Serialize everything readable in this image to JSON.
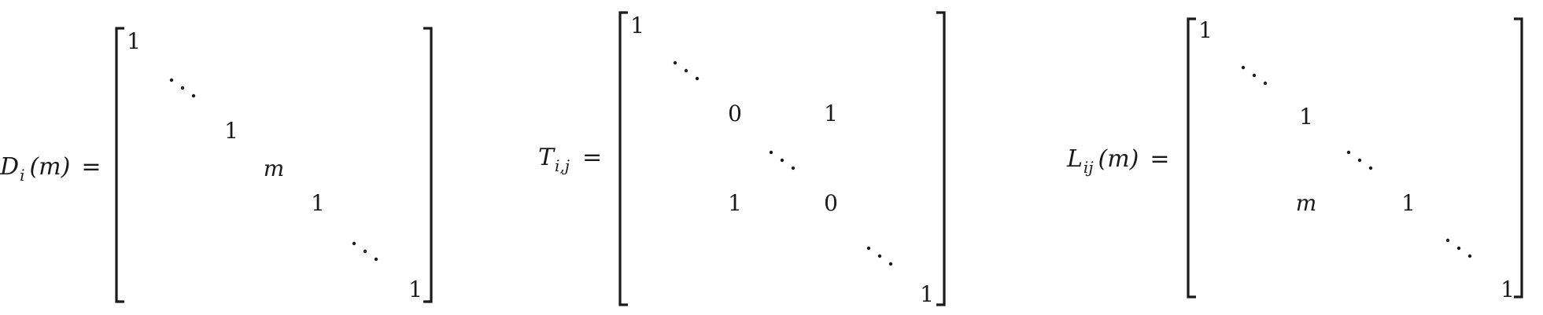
{
  "matrices": [
    {
      "name": "D",
      "subscript": "i",
      "argument": "(m)",
      "equals": "=",
      "entries": [
        {
          "text": "1",
          "kind": "num"
        },
        {
          "text": "⋱",
          "kind": "dots"
        },
        {
          "text": "1",
          "kind": "num"
        },
        {
          "text": "m",
          "kind": "var"
        },
        {
          "text": "1",
          "kind": "num"
        },
        {
          "text": "⋱",
          "kind": "dots"
        },
        {
          "text": "1",
          "kind": "num"
        }
      ]
    },
    {
      "name": "T",
      "subscript": "i,j",
      "argument": "",
      "equals": "=",
      "entries": [
        {
          "text": "1",
          "kind": "num"
        },
        {
          "text": "⋱",
          "kind": "dots"
        },
        {
          "text": "0",
          "kind": "num"
        },
        {
          "text": "1",
          "kind": "num"
        },
        {
          "text": "⋱",
          "kind": "dots"
        },
        {
          "text": "1",
          "kind": "num"
        },
        {
          "text": "0",
          "kind": "num"
        },
        {
          "text": "⋱",
          "kind": "dots"
        },
        {
          "text": "1",
          "kind": "num"
        }
      ]
    },
    {
      "name": "L",
      "subscript": "ij",
      "argument": "(m)",
      "equals": "=",
      "entries": [
        {
          "text": "1",
          "kind": "num"
        },
        {
          "text": "⋱",
          "kind": "dots"
        },
        {
          "text": "1",
          "kind": "num"
        },
        {
          "text": "⋱",
          "kind": "dots"
        },
        {
          "text": "m",
          "kind": "var"
        },
        {
          "text": "1",
          "kind": "num"
        },
        {
          "text": "⋱",
          "kind": "dots"
        },
        {
          "text": "1",
          "kind": "num"
        }
      ]
    }
  ]
}
